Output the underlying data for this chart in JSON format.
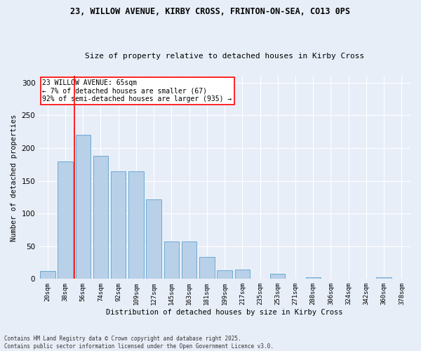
{
  "title_line1": "23, WILLOW AVENUE, KIRBY CROSS, FRINTON-ON-SEA, CO13 0PS",
  "title_line2": "Size of property relative to detached houses in Kirby Cross",
  "xlabel": "Distribution of detached houses by size in Kirby Cross",
  "ylabel": "Number of detached properties",
  "categories": [
    "20sqm",
    "38sqm",
    "56sqm",
    "74sqm",
    "92sqm",
    "109sqm",
    "127sqm",
    "145sqm",
    "163sqm",
    "181sqm",
    "199sqm",
    "217sqm",
    "235sqm",
    "253sqm",
    "271sqm",
    "288sqm",
    "306sqm",
    "324sqm",
    "342sqm",
    "360sqm",
    "378sqm"
  ],
  "values": [
    12,
    180,
    220,
    188,
    165,
    165,
    122,
    57,
    57,
    34,
    13,
    14,
    0,
    8,
    0,
    2,
    0,
    0,
    0,
    2,
    0
  ],
  "bar_color": "#b8d0e8",
  "bar_edge_color": "#6aaad4",
  "vline_x": 1.5,
  "vline_color": "red",
  "annotation_text": "23 WILLOW AVENUE: 65sqm\n← 7% of detached houses are smaller (67)\n92% of semi-detached houses are larger (935) →",
  "annotation_box_color": "white",
  "annotation_box_edge_color": "red",
  "ylim": [
    0,
    310
  ],
  "yticks": [
    0,
    50,
    100,
    150,
    200,
    250,
    300
  ],
  "footer_line1": "Contains HM Land Registry data © Crown copyright and database right 2025.",
  "footer_line2": "Contains public sector information licensed under the Open Government Licence v3.0.",
  "background_color": "#e8eef8",
  "grid_color": "white"
}
